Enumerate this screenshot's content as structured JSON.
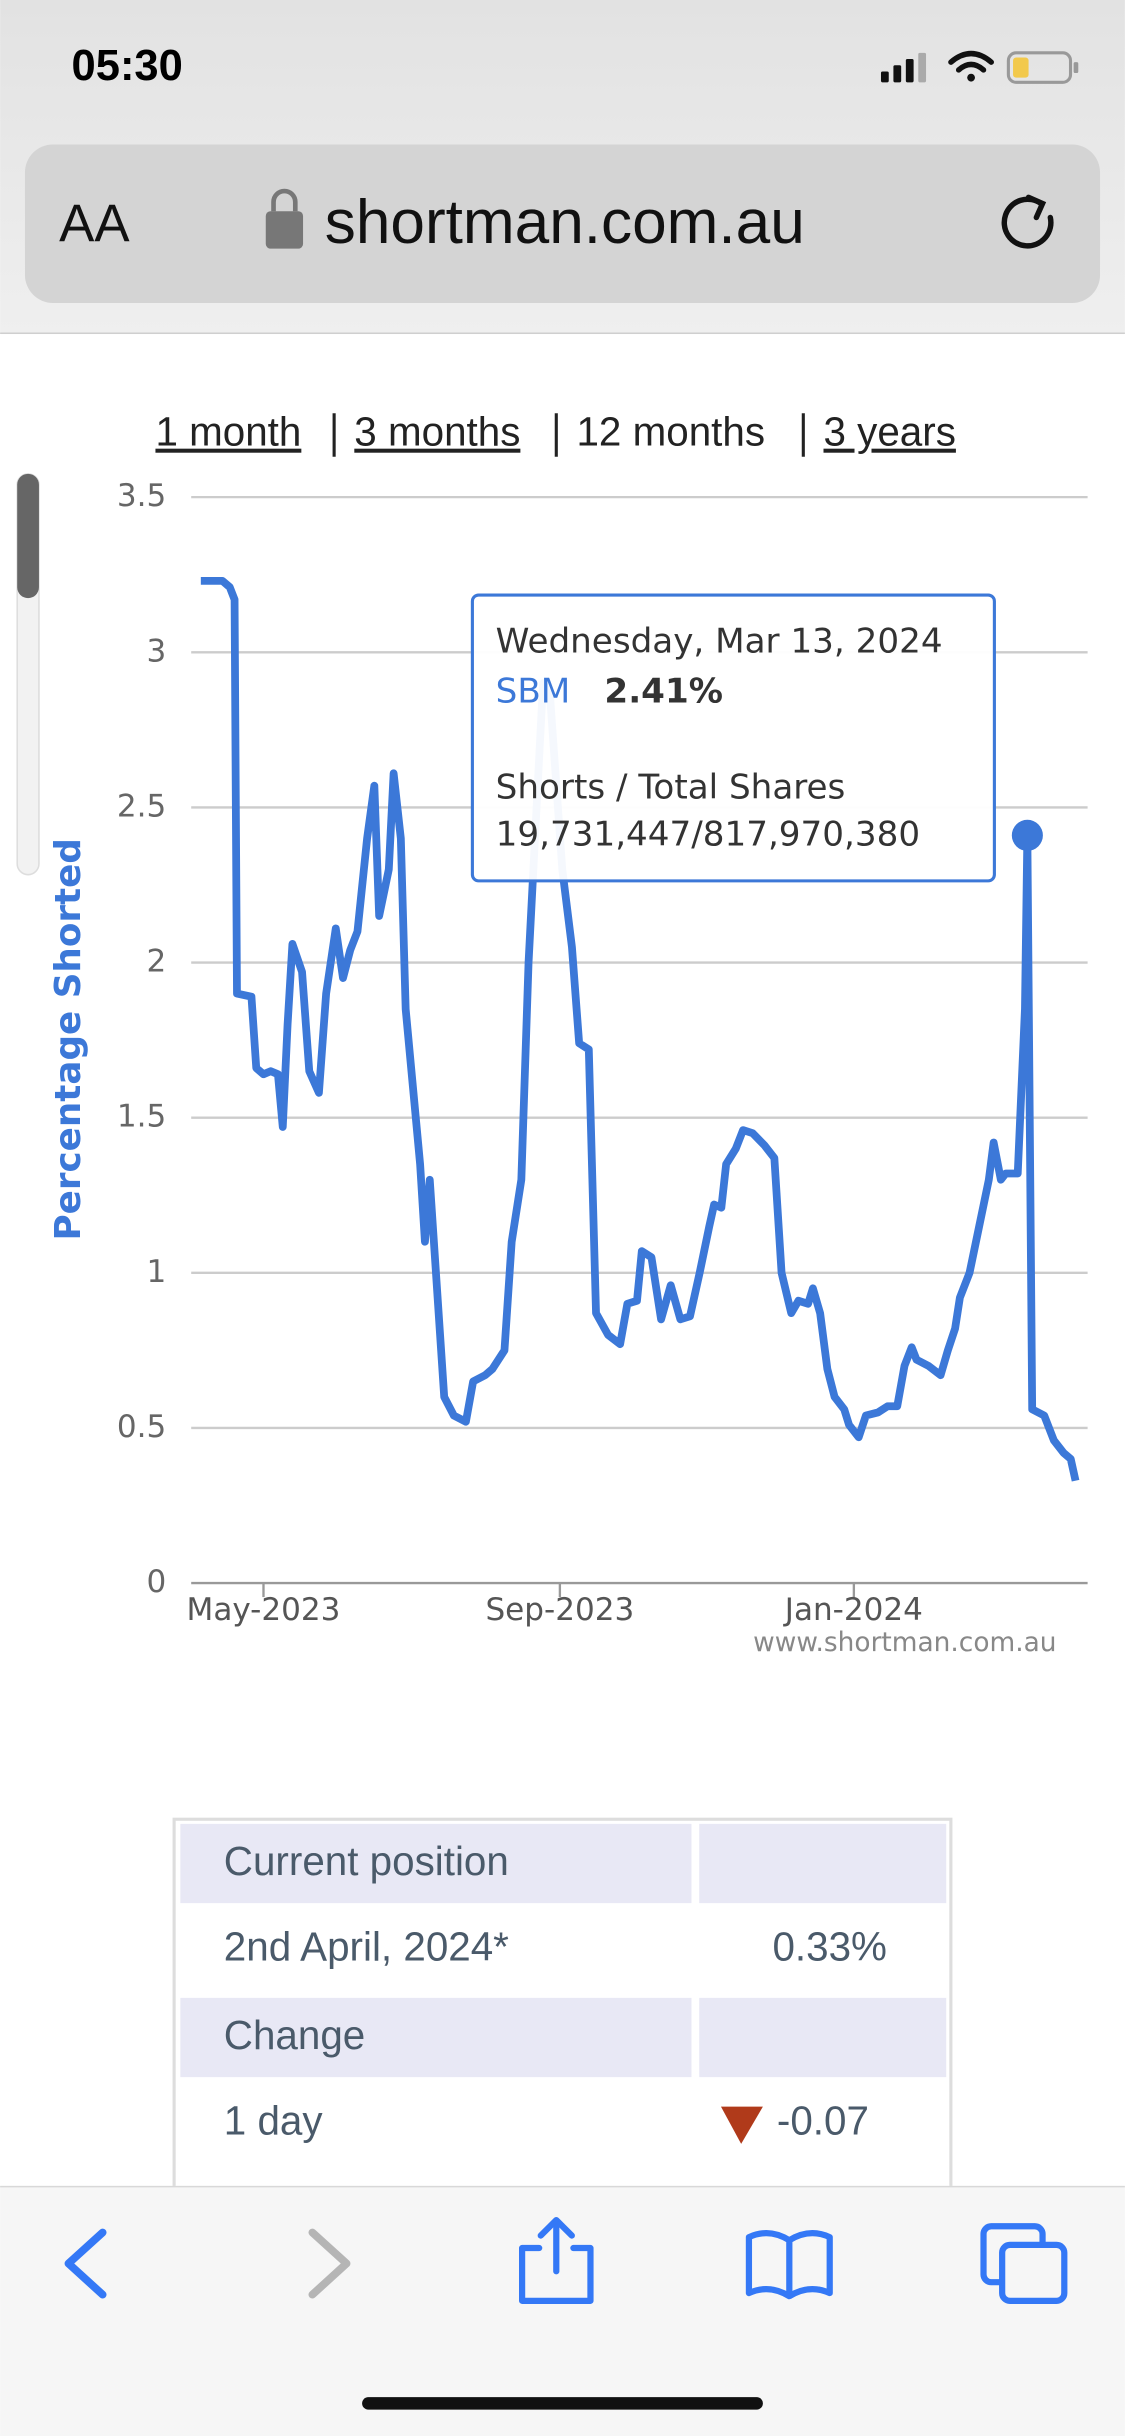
{
  "status_bar": {
    "time": "05:30"
  },
  "browser": {
    "text_size": "AA",
    "url": "shortman.com.au"
  },
  "range_links": [
    "1 month",
    "3 months",
    "12 months",
    "3 years"
  ],
  "chart_data": {
    "type": "line",
    "y_label": "Percentage Shorted",
    "credit": "www.shortman.com.au",
    "x": [
      "2023-04-05",
      "2023-04-14",
      "2023-04-17",
      "2023-04-19",
      "2023-04-20",
      "2023-04-26",
      "2023-04-28",
      "2023-05-01",
      "2023-05-04",
      "2023-05-07",
      "2023-05-09",
      "2023-05-11",
      "2023-05-13",
      "2023-05-17",
      "2023-05-20",
      "2023-05-24",
      "2023-05-27",
      "2023-05-31",
      "2023-06-03",
      "2023-06-06",
      "2023-06-09",
      "2023-06-13",
      "2023-06-16",
      "2023-06-18",
      "2023-06-22",
      "2023-06-24",
      "2023-06-27",
      "2023-06-29",
      "2023-07-02",
      "2023-07-05",
      "2023-07-07",
      "2023-07-09",
      "2023-07-12",
      "2023-07-15",
      "2023-07-19",
      "2023-07-24",
      "2023-07-27",
      "2023-08-01",
      "2023-08-04",
      "2023-08-09",
      "2023-08-12",
      "2023-08-16",
      "2023-08-19",
      "2023-08-22",
      "2023-08-25",
      "2023-08-28",
      "2023-09-02",
      "2023-09-06",
      "2023-09-09",
      "2023-09-13",
      "2023-09-16",
      "2023-09-21",
      "2023-09-26",
      "2023-09-29",
      "2023-10-03",
      "2023-10-05",
      "2023-10-09",
      "2023-10-13",
      "2023-10-17",
      "2023-10-21",
      "2023-10-25",
      "2023-10-29",
      "2023-11-02",
      "2023-11-04",
      "2023-11-07",
      "2023-11-09",
      "2023-11-13",
      "2023-11-16",
      "2023-11-20",
      "2023-11-25",
      "2023-11-29",
      "2023-12-02",
      "2023-12-06",
      "2023-12-09",
      "2023-12-13",
      "2023-12-15",
      "2023-12-18",
      "2023-12-21",
      "2023-12-24",
      "2023-12-28",
      "2023-12-30",
      "2024-01-03",
      "2024-01-06",
      "2024-01-11",
      "2024-01-15",
      "2024-01-19",
      "2024-01-22",
      "2024-01-25",
      "2024-01-27",
      "2024-02-01",
      "2024-02-06",
      "2024-02-09",
      "2024-02-12",
      "2024-02-14",
      "2024-02-18",
      "2024-02-22",
      "2024-02-26",
      "2024-02-28",
      "2024-03-02",
      "2024-03-04",
      "2024-03-09",
      "2024-03-12",
      "2024-03-13",
      "2024-03-15",
      "2024-03-20",
      "2024-03-24",
      "2024-03-28",
      "2024-03-31",
      "2024-04-02"
    ],
    "series": [
      {
        "name": "SBM",
        "color": "#3c78d8",
        "values": [
          3.23,
          3.23,
          3.21,
          3.17,
          1.9,
          1.89,
          1.66,
          1.64,
          1.65,
          1.64,
          1.47,
          1.8,
          2.06,
          1.97,
          1.65,
          1.58,
          1.9,
          2.11,
          1.95,
          2.04,
          2.1,
          2.4,
          2.57,
          2.15,
          2.3,
          2.61,
          2.4,
          1.85,
          1.6,
          1.35,
          1.1,
          1.3,
          0.95,
          0.6,
          0.54,
          0.52,
          0.65,
          0.67,
          0.69,
          0.75,
          1.1,
          1.3,
          2.0,
          2.45,
          2.9,
          2.85,
          2.3,
          2.05,
          1.74,
          1.72,
          0.87,
          0.8,
          0.77,
          0.9,
          0.91,
          1.07,
          1.05,
          0.85,
          0.96,
          0.85,
          0.86,
          1.0,
          1.15,
          1.22,
          1.21,
          1.35,
          1.4,
          1.46,
          1.45,
          1.41,
          1.37,
          1.0,
          0.87,
          0.91,
          0.9,
          0.95,
          0.87,
          0.69,
          0.6,
          0.56,
          0.51,
          0.47,
          0.54,
          0.55,
          0.57,
          0.57,
          0.7,
          0.76,
          0.72,
          0.7,
          0.67,
          0.75,
          0.82,
          0.92,
          1.0,
          1.15,
          1.3,
          1.42,
          1.3,
          1.32,
          1.32,
          1.85,
          2.41,
          0.56,
          0.54,
          0.46,
          0.42,
          0.4,
          0.33
        ]
      }
    ],
    "xlim": [
      "2023-04-01",
      "2024-04-07"
    ],
    "xticks": [
      {
        "value": "2023-05-01",
        "label": "May-2023"
      },
      {
        "value": "2023-09-01",
        "label": "Sep-2023"
      },
      {
        "value": "2024-01-01",
        "label": "Jan-2024"
      }
    ],
    "ylim": [
      0,
      3.5
    ],
    "yticks": [
      0,
      0.5,
      1,
      1.5,
      2,
      2.5,
      3,
      3.5
    ],
    "grid": true,
    "tooltip": {
      "index": 102,
      "date": "Wednesday, Mar 13, 2024",
      "value_label": "2.41%",
      "shares_label": "Shorts / Total Shares",
      "shares": "19,731,447/817,970,380"
    }
  },
  "table": {
    "sections": [
      {
        "heading": "Current position",
        "rows": [
          [
            "2nd April, 2024*",
            "0.33%"
          ]
        ]
      },
      {
        "heading": "Change",
        "rows": [
          [
            "1 day",
            "-0.07"
          ]
        ]
      }
    ]
  }
}
